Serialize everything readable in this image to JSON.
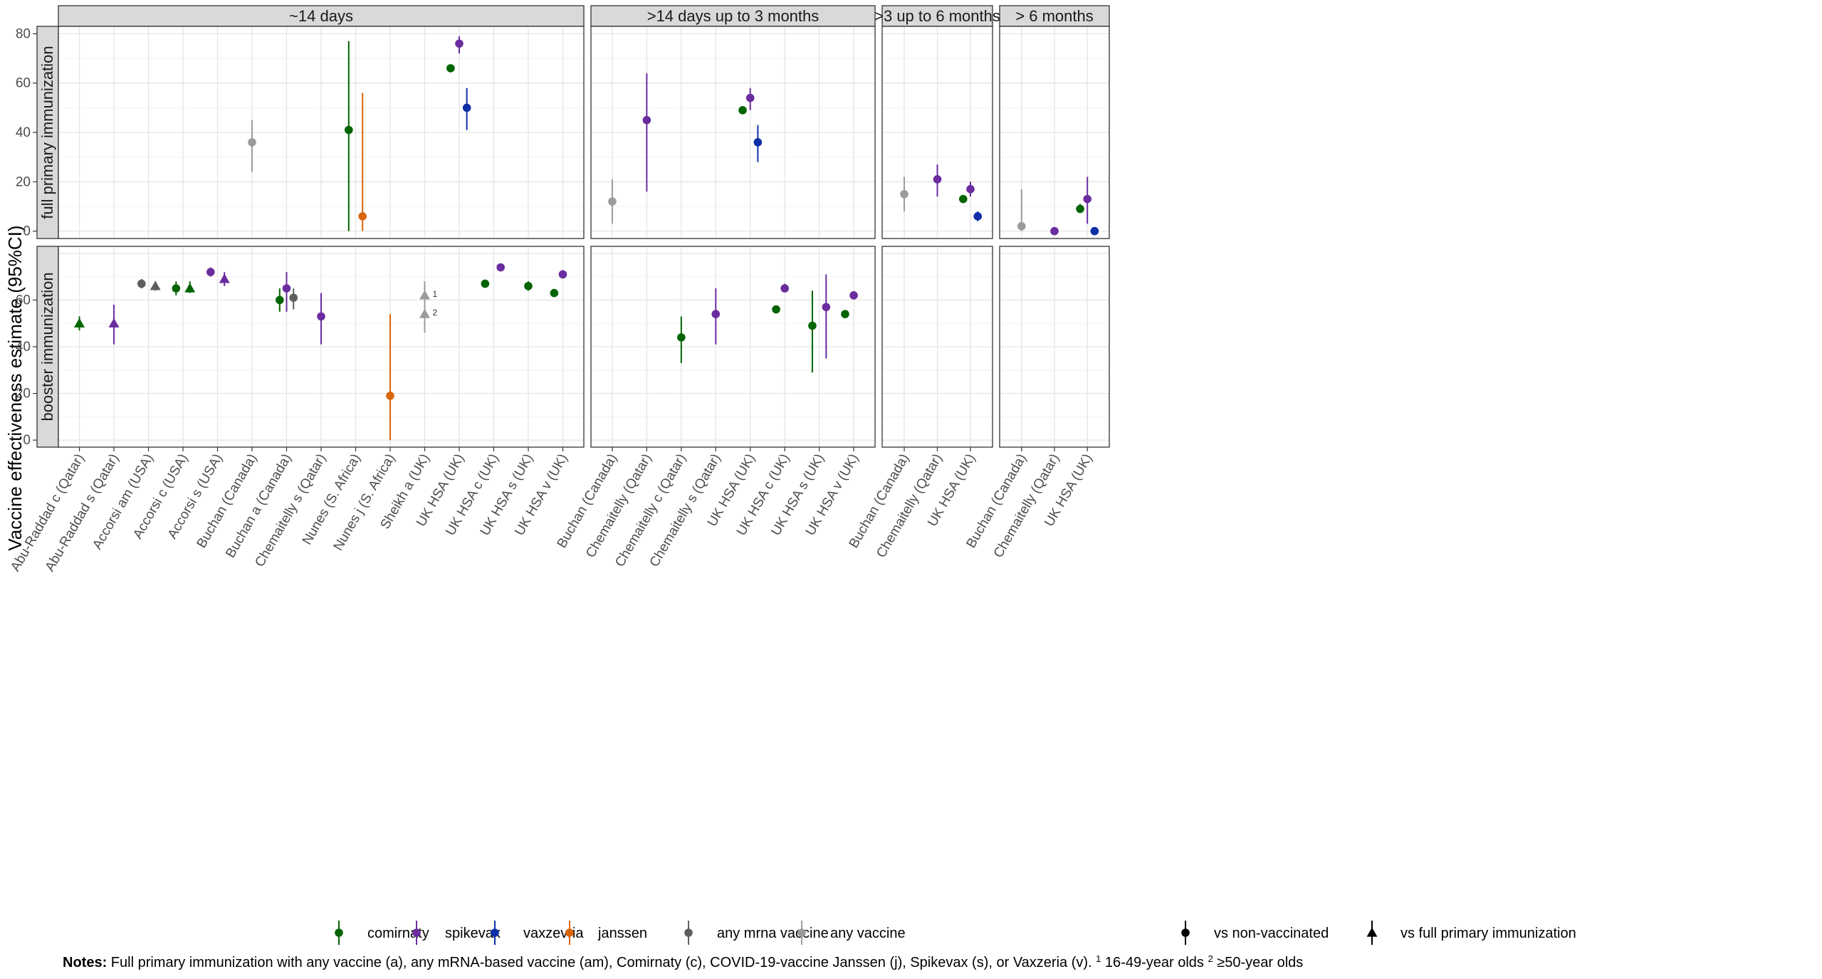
{
  "chart_data": {
    "type": "scatter",
    "ylabel": "Vaccine effectiveness estimate (95%CI)",
    "ylim": [
      -3,
      83
    ],
    "y_ticks": [
      0,
      20,
      40,
      60,
      80
    ],
    "column_facets": [
      {
        "label": "~14 days",
        "categories": [
          "Abu-Raddad c (Qatar)",
          "Abu-Raddad s (Qatar)",
          "Accorsi am (USA)",
          "Accorsi c (USA)",
          "Accorsi s (USA)",
          "Buchan (Canada)",
          "Buchan a (Canada)",
          "Chemaitelly s (Qatar)",
          "Nunes (S. Africa)",
          "Nunes j (S. Africa)",
          "Sheikh a (UK)",
          "UK HSA (UK)",
          "UK HSA c (UK)",
          "UK HSA s (UK)",
          "UK HSA v (UK)"
        ]
      },
      {
        "label": ">14 days up to 3 months",
        "categories": [
          "Buchan (Canada)",
          "Chemaitelly (Qatar)",
          "Chemaitelly c (Qatar)",
          "Chemaitelly s (Qatar)",
          "UK HSA (UK)",
          "UK HSA c (UK)",
          "UK HSA s (UK)",
          "UK HSA v (UK)"
        ]
      },
      {
        "label": ">3 up to 6 months",
        "categories": [
          "Buchan (Canada)",
          "Chemaitelly (Qatar)",
          "UK HSA (UK)"
        ]
      },
      {
        "label": "> 6 months",
        "categories": [
          "Buchan (Canada)",
          "Chemaitelly (Qatar)",
          "UK HSA (UK)"
        ]
      }
    ],
    "row_facets": [
      "full primary immunization",
      "booster immunization"
    ],
    "vaccines": [
      {
        "key": "comirnaty",
        "label": "comirnaty",
        "color": "#006400"
      },
      {
        "key": "spikevax",
        "label": "spikevax",
        "color": "#6a2c9f"
      },
      {
        "key": "vaxzevria",
        "label": "vaxzevria",
        "color": "#0f2fa8"
      },
      {
        "key": "janssen",
        "label": "janssen",
        "color": "#d9660d"
      },
      {
        "key": "anymrna",
        "label": "any mrna vaccine",
        "color": "#5e5e5e"
      },
      {
        "key": "anyvaccine",
        "label": "any vaccine",
        "color": "#9b9b9b"
      }
    ],
    "comparisons": [
      {
        "key": "vs_nonvax",
        "label": "vs non-vaccinated",
        "shape": "circle"
      },
      {
        "key": "vs_full",
        "label": "vs full primary immunization",
        "shape": "triangle"
      }
    ],
    "points": [
      {
        "col": 0,
        "row": 0,
        "cat": 5,
        "dx": 0,
        "vaccine": "anyvaccine",
        "shape": "circle",
        "y": 36,
        "lo": 24,
        "hi": 45
      },
      {
        "col": 0,
        "row": 0,
        "cat": 8,
        "dx": -0.2,
        "vaccine": "comirnaty",
        "shape": "circle",
        "y": 41,
        "lo": 0,
        "hi": 77
      },
      {
        "col": 0,
        "row": 0,
        "cat": 8,
        "dx": 0.2,
        "vaccine": "janssen",
        "shape": "circle",
        "y": 6,
        "lo": 0,
        "hi": 56
      },
      {
        "col": 0,
        "row": 0,
        "cat": 10,
        "dx": 0.75,
        "vaccine": "comirnaty",
        "shape": "circle",
        "y": 66,
        "lo": 65,
        "hi": 67
      },
      {
        "col": 0,
        "row": 0,
        "cat": 11,
        "dx": 0,
        "vaccine": "spikevax",
        "shape": "circle",
        "y": 76,
        "lo": 72,
        "hi": 79
      },
      {
        "col": 0,
        "row": 0,
        "cat": 11,
        "dx": 0.22,
        "vaccine": "vaxzevria",
        "shape": "circle",
        "y": 50,
        "lo": 41,
        "hi": 58
      },
      {
        "col": 1,
        "row": 0,
        "cat": 0,
        "dx": 0,
        "vaccine": "anyvaccine",
        "shape": "circle",
        "y": 12,
        "lo": 3,
        "hi": 21
      },
      {
        "col": 1,
        "row": 0,
        "cat": 1,
        "dx": 0,
        "vaccine": "spikevax",
        "shape": "circle",
        "y": 45,
        "lo": 16,
        "hi": 64
      },
      {
        "col": 1,
        "row": 0,
        "cat": 4,
        "dx": -0.22,
        "vaccine": "comirnaty",
        "shape": "circle",
        "y": 49,
        "lo": 48,
        "hi": 50
      },
      {
        "col": 1,
        "row": 0,
        "cat": 4,
        "dx": 0,
        "vaccine": "spikevax",
        "shape": "circle",
        "y": 54,
        "lo": 49,
        "hi": 58
      },
      {
        "col": 1,
        "row": 0,
        "cat": 4,
        "dx": 0.22,
        "vaccine": "vaxzevria",
        "shape": "circle",
        "y": 36,
        "lo": 28,
        "hi": 43
      },
      {
        "col": 2,
        "row": 0,
        "cat": 0,
        "dx": 0,
        "vaccine": "anyvaccine",
        "shape": "circle",
        "y": 15,
        "lo": 8,
        "hi": 22
      },
      {
        "col": 2,
        "row": 0,
        "cat": 1,
        "dx": 0,
        "vaccine": "spikevax",
        "shape": "circle",
        "y": 21,
        "lo": 14,
        "hi": 27
      },
      {
        "col": 2,
        "row": 0,
        "cat": 2,
        "dx": -0.22,
        "vaccine": "comirnaty",
        "shape": "circle",
        "y": 13,
        "lo": 12,
        "hi": 14
      },
      {
        "col": 2,
        "row": 0,
        "cat": 2,
        "dx": 0,
        "vaccine": "spikevax",
        "shape": "circle",
        "y": 17,
        "lo": 14,
        "hi": 20
      },
      {
        "col": 2,
        "row": 0,
        "cat": 2,
        "dx": 0.22,
        "vaccine": "vaxzevria",
        "shape": "circle",
        "y": 6,
        "lo": 4,
        "hi": 8
      },
      {
        "col": 3,
        "row": 0,
        "cat": 0,
        "dx": 0,
        "vaccine": "anyvaccine",
        "shape": "circle",
        "y": 2,
        "lo": 0,
        "hi": 17
      },
      {
        "col": 3,
        "row": 0,
        "cat": 1,
        "dx": 0,
        "vaccine": "spikevax",
        "shape": "circle",
        "y": 0,
        "lo": 0,
        "hi": 0
      },
      {
        "col": 3,
        "row": 0,
        "cat": 2,
        "dx": -0.22,
        "vaccine": "comirnaty",
        "shape": "circle",
        "y": 9,
        "lo": 8,
        "hi": 11
      },
      {
        "col": 3,
        "row": 0,
        "cat": 2,
        "dx": 0,
        "vaccine": "spikevax",
        "shape": "circle",
        "y": 13,
        "lo": 3,
        "hi": 22
      },
      {
        "col": 3,
        "row": 0,
        "cat": 2,
        "dx": 0.22,
        "vaccine": "vaxzevria",
        "shape": "circle",
        "y": 0,
        "lo": 0,
        "hi": 0
      },
      {
        "col": 0,
        "row": 1,
        "cat": 0,
        "dx": 0,
        "vaccine": "comirnaty",
        "shape": "triangle",
        "y": 50,
        "lo": 47,
        "hi": 53
      },
      {
        "col": 0,
        "row": 1,
        "cat": 1,
        "dx": 0,
        "vaccine": "spikevax",
        "shape": "triangle",
        "y": 50,
        "lo": 41,
        "hi": 58
      },
      {
        "col": 0,
        "row": 1,
        "cat": 2,
        "dx": -0.2,
        "vaccine": "anymrna",
        "shape": "circle",
        "y": 67,
        "lo": 65,
        "hi": 69
      },
      {
        "col": 0,
        "row": 1,
        "cat": 2,
        "dx": 0.2,
        "vaccine": "anymrna",
        "shape": "triangle",
        "y": 66,
        "lo": 64,
        "hi": 68
      },
      {
        "col": 0,
        "row": 1,
        "cat": 3,
        "dx": -0.2,
        "vaccine": "comirnaty",
        "shape": "circle",
        "y": 65,
        "lo": 62,
        "hi": 68
      },
      {
        "col": 0,
        "row": 1,
        "cat": 3,
        "dx": 0.2,
        "vaccine": "comirnaty",
        "shape": "triangle",
        "y": 65,
        "lo": 63,
        "hi": 68
      },
      {
        "col": 0,
        "row": 1,
        "cat": 4,
        "dx": -0.2,
        "vaccine": "spikevax",
        "shape": "circle",
        "y": 72,
        "lo": 70,
        "hi": 74
      },
      {
        "col": 0,
        "row": 1,
        "cat": 4,
        "dx": 0.2,
        "vaccine": "spikevax",
        "shape": "triangle",
        "y": 69,
        "lo": 66,
        "hi": 72
      },
      {
        "col": 0,
        "row": 1,
        "cat": 6,
        "dx": -0.2,
        "vaccine": "comirnaty",
        "shape": "circle",
        "y": 60,
        "lo": 55,
        "hi": 65
      },
      {
        "col": 0,
        "row": 1,
        "cat": 6,
        "dx": 0,
        "vaccine": "spikevax",
        "shape": "circle",
        "y": 65,
        "lo": 55,
        "hi": 72
      },
      {
        "col": 0,
        "row": 1,
        "cat": 6,
        "dx": 0.2,
        "vaccine": "anymrna",
        "shape": "circle",
        "y": 61,
        "lo": 56,
        "hi": 65
      },
      {
        "col": 0,
        "row": 1,
        "cat": 7,
        "dx": 0,
        "vaccine": "spikevax",
        "shape": "circle",
        "y": 53,
        "lo": 41,
        "hi": 63
      },
      {
        "col": 0,
        "row": 1,
        "cat": 9,
        "dx": 0,
        "vaccine": "janssen",
        "shape": "circle",
        "y": 19,
        "lo": 0,
        "hi": 54
      },
      {
        "col": 0,
        "row": 1,
        "cat": 10,
        "dx": 0,
        "vaccine": "anyvaccine",
        "shape": "triangle",
        "y": 62,
        "lo": 56,
        "hi": 68,
        "note": "1"
      },
      {
        "col": 0,
        "row": 1,
        "cat": 10,
        "dx": 0,
        "vaccine": "anyvaccine",
        "shape": "triangle",
        "y": 54,
        "lo": 46,
        "hi": 61,
        "note": "2"
      },
      {
        "col": 0,
        "row": 1,
        "cat": 11,
        "dx": 0.75,
        "vaccine": "comirnaty",
        "shape": "circle",
        "y": 67,
        "lo": 66,
        "hi": 68
      },
      {
        "col": 0,
        "row": 1,
        "cat": 12,
        "dx": 0.2,
        "vaccine": "spikevax",
        "shape": "circle",
        "y": 74,
        "lo": 73,
        "hi": 75
      },
      {
        "col": 0,
        "row": 1,
        "cat": 13,
        "dx": 0,
        "vaccine": "comirnaty",
        "shape": "circle",
        "y": 66,
        "lo": 64,
        "hi": 68
      },
      {
        "col": 0,
        "row": 1,
        "cat": 13,
        "dx": 0.75,
        "vaccine": "comirnaty",
        "shape": "circle",
        "y": 63,
        "lo": 62,
        "hi": 64
      },
      {
        "col": 0,
        "row": 1,
        "cat": 14,
        "dx": 0,
        "vaccine": "spikevax",
        "shape": "circle",
        "y": 71,
        "lo": 70,
        "hi": 72
      },
      {
        "col": 1,
        "row": 1,
        "cat": 2,
        "dx": 0,
        "vaccine": "comirnaty",
        "shape": "circle",
        "y": 44,
        "lo": 33,
        "hi": 53
      },
      {
        "col": 1,
        "row": 1,
        "cat": 3,
        "dx": 0,
        "vaccine": "spikevax",
        "shape": "circle",
        "y": 54,
        "lo": 41,
        "hi": 65
      },
      {
        "col": 1,
        "row": 1,
        "cat": 4,
        "dx": 0.75,
        "vaccine": "comirnaty",
        "shape": "circle",
        "y": 56,
        "lo": 55,
        "hi": 57
      },
      {
        "col": 1,
        "row": 1,
        "cat": 5,
        "dx": 0,
        "vaccine": "spikevax",
        "shape": "circle",
        "y": 65,
        "lo": 64,
        "hi": 67
      },
      {
        "col": 1,
        "row": 1,
        "cat": 6,
        "dx": -0.2,
        "vaccine": "comirnaty",
        "shape": "circle",
        "y": 49,
        "lo": 29,
        "hi": 64
      },
      {
        "col": 1,
        "row": 1,
        "cat": 6,
        "dx": 0.2,
        "vaccine": "spikevax",
        "shape": "circle",
        "y": 57,
        "lo": 35,
        "hi": 71
      },
      {
        "col": 1,
        "row": 1,
        "cat": 6,
        "dx": 0.75,
        "vaccine": "comirnaty",
        "shape": "circle",
        "y": 54,
        "lo": 53,
        "hi": 55
      },
      {
        "col": 1,
        "row": 1,
        "cat": 7,
        "dx": 0,
        "vaccine": "spikevax",
        "shape": "circle",
        "y": 62,
        "lo": 61,
        "hi": 63
      }
    ],
    "notes_label": "Notes:",
    "notes_text": " Full primary immunization with any vaccine (a), any mRNA-based vaccine (am), Comirnaty (c), COVID-19-vaccine Janssen (j), Spikevax (s), or Vaxzeria (v). ",
    "note_1_mark": "1",
    "note_1_text": " 16-49-year olds ",
    "note_2_mark": "2",
    "note_2_text": " ≥50-year olds"
  }
}
